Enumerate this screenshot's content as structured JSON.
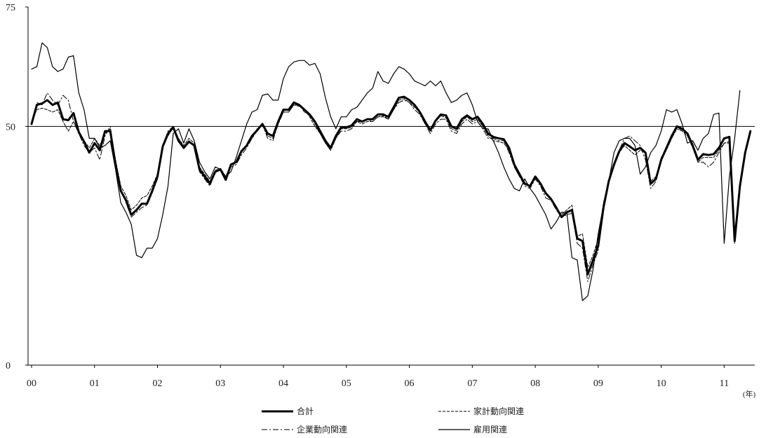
{
  "chart_data": {
    "type": "line",
    "title": "",
    "xlabel": "(年)",
    "ylabel": "",
    "ylim": [
      0,
      75
    ],
    "y_ticks": [
      "0",
      "50",
      "75"
    ],
    "reference_line": 50,
    "x_tick_labels": [
      "00",
      "01",
      "02",
      "03",
      "04",
      "05",
      "06",
      "07",
      "08",
      "09",
      "10",
      "11"
    ],
    "x_start": "2000-01",
    "grid": false,
    "legend_position": "bottom",
    "series": [
      {
        "name": "合計",
        "style": "thick-solid",
        "values": [
          50.5,
          54.5,
          54.8,
          55.5,
          54.5,
          55.0,
          51.5,
          51.3,
          52.8,
          48.8,
          46.8,
          44.5,
          46.5,
          45.0,
          49.0,
          49.0,
          42.0,
          36.5,
          34.5,
          31.5,
          32.5,
          33.8,
          33.8,
          36.5,
          39.5,
          45.8,
          48.5,
          49.8,
          47.0,
          45.5,
          46.8,
          46.0,
          41.0,
          39.5,
          38.0,
          40.5,
          41.0,
          38.8,
          42.0,
          42.5,
          44.8,
          46.0,
          48.0,
          49.2,
          50.5,
          48.5,
          48.0,
          51.0,
          53.5,
          53.5,
          55.0,
          54.5,
          53.5,
          52.5,
          51.0,
          49.0,
          47.0,
          45.5,
          48.0,
          49.8,
          49.8,
          50.2,
          51.5,
          51.0,
          51.5,
          51.5,
          52.5,
          52.5,
          52.0,
          54.0,
          56.0,
          56.2,
          55.5,
          54.5,
          53.0,
          51.0,
          49.2,
          51.2,
          52.5,
          52.3,
          50.0,
          49.5,
          51.5,
          52.3,
          51.5,
          52.0,
          50.5,
          48.5,
          47.8,
          47.5,
          47.3,
          45.5,
          42.0,
          40.0,
          38.0,
          37.5,
          39.5,
          38.0,
          36.0,
          34.8,
          33.0,
          31.0,
          32.0,
          32.5,
          26.5,
          26.0,
          19.0,
          22.0,
          25.0,
          33.0,
          38.5,
          42.0,
          44.8,
          46.5,
          45.8,
          45.0,
          45.5,
          44.5,
          38.0,
          39.0,
          43.0,
          45.5,
          48.0,
          50.0,
          49.5,
          48.5,
          46.0,
          43.0,
          44.2,
          44.0,
          44.2,
          45.5,
          47.5,
          47.8,
          26.0,
          37.5,
          44.5,
          49.0
        ]
      },
      {
        "name": "家計動向関連",
        "style": "dashed",
        "values": [
          51.0,
          53.5,
          53.8,
          53.5,
          53.0,
          53.5,
          51.0,
          49.0,
          51.0,
          49.0,
          47.0,
          45.5,
          47.5,
          46.0,
          48.5,
          49.5,
          43.0,
          37.5,
          35.5,
          32.5,
          33.5,
          35.0,
          35.5,
          37.5,
          40.0,
          45.5,
          48.0,
          49.8,
          47.5,
          46.0,
          47.5,
          46.5,
          41.5,
          40.0,
          38.5,
          40.8,
          41.2,
          39.5,
          42.0,
          42.5,
          44.5,
          46.0,
          47.5,
          49.5,
          50.2,
          48.0,
          47.5,
          50.5,
          53.0,
          53.0,
          54.5,
          54.2,
          53.5,
          52.0,
          50.0,
          48.5,
          46.5,
          45.0,
          47.5,
          49.5,
          49.5,
          49.8,
          51.0,
          50.5,
          51.0,
          51.0,
          52.0,
          52.0,
          51.5,
          53.5,
          55.5,
          55.8,
          55.0,
          54.0,
          53.0,
          50.5,
          49.0,
          51.0,
          52.2,
          51.8,
          49.5,
          49.0,
          51.0,
          52.0,
          51.0,
          51.5,
          50.0,
          48.0,
          47.0,
          46.8,
          46.5,
          45.0,
          41.5,
          39.5,
          38.0,
          37.5,
          39.5,
          38.0,
          36.0,
          35.0,
          33.0,
          31.5,
          32.5,
          33.5,
          27.0,
          27.5,
          20.5,
          23.0,
          26.5,
          34.0,
          38.5,
          41.5,
          44.5,
          46.0,
          45.0,
          44.0,
          45.0,
          44.5,
          38.5,
          39.5,
          43.0,
          45.5,
          47.5,
          49.5,
          49.0,
          48.0,
          45.5,
          42.5,
          43.5,
          43.5,
          43.5,
          45.0,
          46.5,
          46.8,
          26.5,
          38.0,
          45.0,
          49.0
        ]
      },
      {
        "name": "企業動向関連",
        "style": "dash-dot",
        "values": [
          50.5,
          55.0,
          54.5,
          57.0,
          55.5,
          54.5,
          56.5,
          55.5,
          51.0,
          48.5,
          46.0,
          44.5,
          45.5,
          43.0,
          48.0,
          50.0,
          42.5,
          37.0,
          34.0,
          31.0,
          32.0,
          33.0,
          33.5,
          36.0,
          39.0,
          46.0,
          49.0,
          50.0,
          47.5,
          45.5,
          47.0,
          45.8,
          40.5,
          39.0,
          37.5,
          40.5,
          41.0,
          38.5,
          41.5,
          42.0,
          44.0,
          45.5,
          47.5,
          49.0,
          50.5,
          47.5,
          47.0,
          50.5,
          53.0,
          53.0,
          54.5,
          54.5,
          53.0,
          52.5,
          50.5,
          48.5,
          46.5,
          45.0,
          47.5,
          49.0,
          49.0,
          49.5,
          51.0,
          51.0,
          51.5,
          51.0,
          52.0,
          52.2,
          51.5,
          53.5,
          55.0,
          55.5,
          55.0,
          53.5,
          52.5,
          50.5,
          48.5,
          50.5,
          51.5,
          51.5,
          49.0,
          48.5,
          50.5,
          51.5,
          50.5,
          51.0,
          49.5,
          47.5,
          47.5,
          47.0,
          47.0,
          44.5,
          41.5,
          39.5,
          37.5,
          37.0,
          39.0,
          37.5,
          35.0,
          34.5,
          32.5,
          31.0,
          31.5,
          31.8,
          25.5,
          24.5,
          17.5,
          21.0,
          24.0,
          32.5,
          38.0,
          42.0,
          45.0,
          47.5,
          48.0,
          47.0,
          46.0,
          43.0,
          37.0,
          38.5,
          43.5,
          45.0,
          47.5,
          50.0,
          49.0,
          48.5,
          46.5,
          42.5,
          42.5,
          41.5,
          42.5,
          44.5,
          46.5,
          46.5,
          25.5,
          37.5,
          44.5,
          48.5
        ]
      },
      {
        "name": "雇用関連",
        "style": "thin-solid",
        "values": [
          62.0,
          62.5,
          67.5,
          66.5,
          62.5,
          61.5,
          62.0,
          64.5,
          64.8,
          57.0,
          53.5,
          47.5,
          47.5,
          45.5,
          46.0,
          47.0,
          41.0,
          34.0,
          32.0,
          29.5,
          23.0,
          22.5,
          24.5,
          24.5,
          26.5,
          31.5,
          37.5,
          48.5,
          49.5,
          46.5,
          49.5,
          47.0,
          42.5,
          40.5,
          39.0,
          41.5,
          41.0,
          39.5,
          40.5,
          43.5,
          47.0,
          50.5,
          53.0,
          53.5,
          56.5,
          56.8,
          55.5,
          55.5,
          60.0,
          62.5,
          63.5,
          63.8,
          63.8,
          62.8,
          63.2,
          61.0,
          56.0,
          52.0,
          49.5,
          52.0,
          52.0,
          53.5,
          54.0,
          55.5,
          57.0,
          58.0,
          61.5,
          59.5,
          59.0,
          61.0,
          62.5,
          62.0,
          61.0,
          59.5,
          59.0,
          58.5,
          59.5,
          58.5,
          59.5,
          57.0,
          55.0,
          55.5,
          56.5,
          57.0,
          54.5,
          51.0,
          49.5,
          49.5,
          47.0,
          44.5,
          41.5,
          39.0,
          37.0,
          36.5,
          39.0,
          37.0,
          35.5,
          33.5,
          31.5,
          28.5,
          30.0,
          32.0,
          32.0,
          22.5,
          22.0,
          13.5,
          14.5,
          20.0,
          27.5,
          33.5,
          38.5,
          44.5,
          47.0,
          47.5,
          47.5,
          46.0,
          40.0,
          41.5,
          44.5,
          46.0,
          49.0,
          53.5,
          53.0,
          53.5,
          50.5,
          46.5,
          47.0,
          45.0,
          47.5,
          48.5,
          52.5,
          52.8,
          25.5,
          39.5,
          47.5,
          57.5
        ]
      }
    ]
  }
}
